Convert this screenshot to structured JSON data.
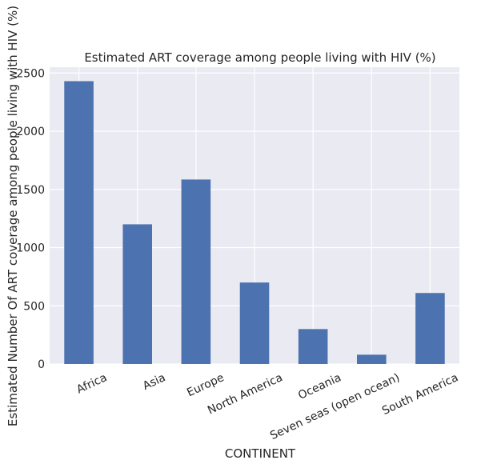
{
  "chart_data": {
    "type": "bar",
    "title": "Estimated ART coverage among people living with HIV (%)",
    "xlabel": "CONTINENT",
    "ylabel": "Estimated Number Of ART coverage among people living with HIV (%)",
    "categories": [
      "Africa",
      "Asia",
      "Europe",
      "North America",
      "Oceania",
      "Seven seas (open ocean)",
      "South America"
    ],
    "values": [
      2430,
      1200,
      1585,
      700,
      300,
      80,
      610
    ],
    "ylim": [
      0,
      2550
    ],
    "yticks": [
      0,
      500,
      1000,
      1500,
      2000,
      2500
    ],
    "grid": true,
    "colors": {
      "bar": "#4c72b0",
      "plot_bg": "#eaeaf2",
      "grid": "#ffffff"
    }
  }
}
